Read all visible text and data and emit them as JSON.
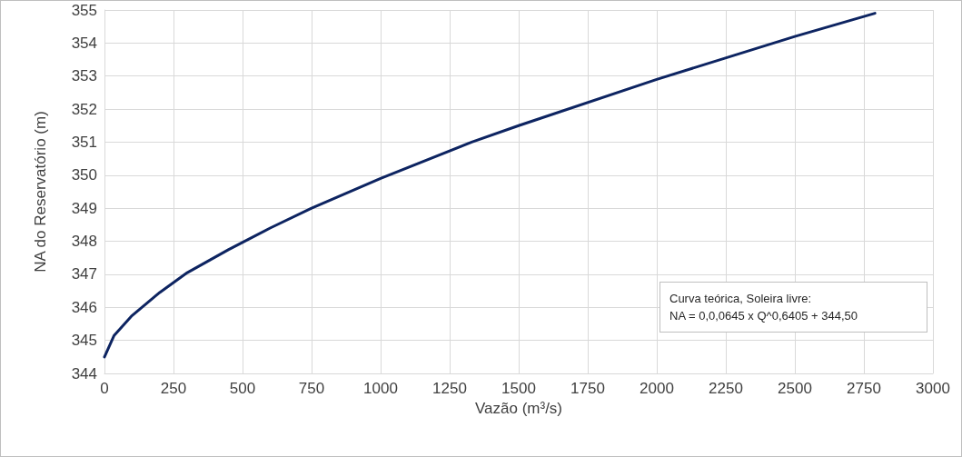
{
  "chart_data": {
    "type": "line",
    "xlabel": "Vazão (m³/s)",
    "ylabel": "NA do Reservatório (m)",
    "x": [
      0,
      35,
      100,
      200,
      300,
      450,
      600,
      750,
      1000,
      1330,
      1500,
      2000,
      2500,
      2790
    ],
    "series": [
      {
        "color": "#0d2461",
        "values": [
          344.5,
          345.15,
          345.75,
          346.45,
          347.05,
          347.75,
          348.4,
          349.0,
          349.9,
          351.0,
          351.5,
          352.9,
          354.2,
          354.9
        ]
      }
    ],
    "xlim": [
      0,
      3000
    ],
    "xticks": [
      0,
      250,
      500,
      750,
      1000,
      1250,
      1500,
      1750,
      2000,
      2250,
      2500,
      2750,
      3000
    ],
    "ylim": [
      344,
      355
    ],
    "yticks": [
      344,
      345,
      346,
      347,
      348,
      349,
      350,
      351,
      352,
      353,
      354,
      355
    ],
    "grid": true,
    "marker": "none",
    "line_style": "solid",
    "annotations": [
      "Curva teórica, Soleira livre:\nNA = 0,0,0645 x Q^0,6405 + 344,50"
    ]
  }
}
